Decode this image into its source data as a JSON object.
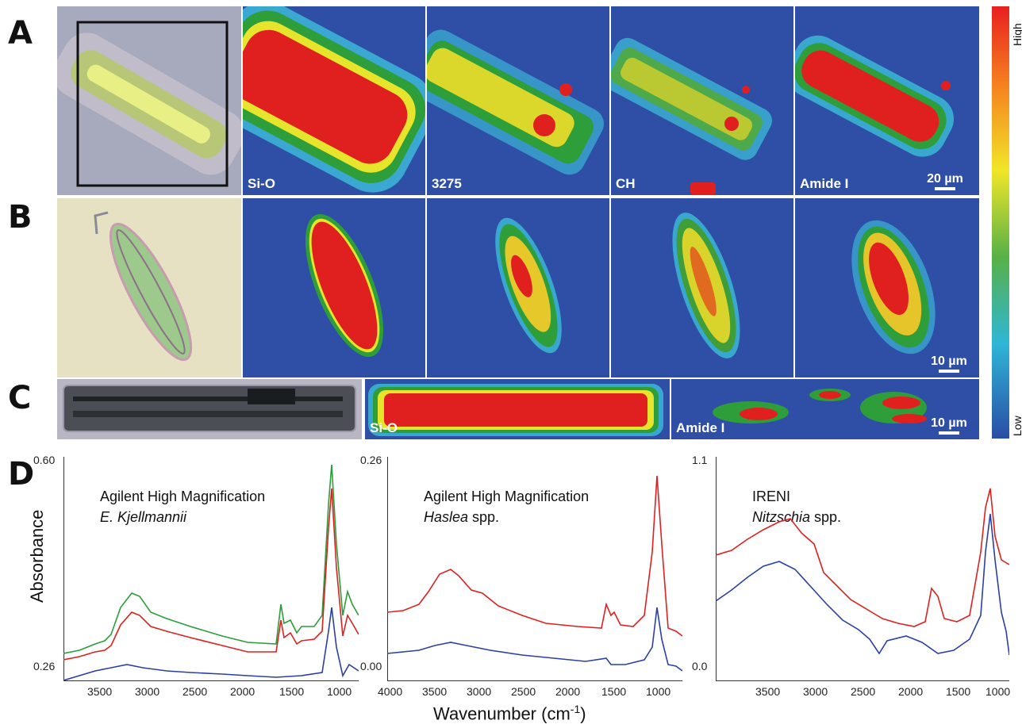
{
  "row_labels": {
    "a": "A",
    "b": "B",
    "c": "C",
    "d": "D"
  },
  "row_a": {
    "labels": [
      "Si-O",
      "3275",
      "CH",
      "Amide I"
    ],
    "scale": "20 µm"
  },
  "row_b": {
    "scale": "10 µm"
  },
  "row_c": {
    "labels": [
      "Si-O",
      "Amide I"
    ],
    "scale": "10 µm"
  },
  "colorbar": {
    "high": "High",
    "low": "Low"
  },
  "spectra": {
    "ylabel": "Absorbance",
    "xlabel": "Wavenumber (cm",
    "xlabel_sup": "-1",
    "xlabel_end": ")",
    "panels": [
      {
        "title": "Agilent High Magnification",
        "subtitle": "E. Kjellmannii",
        "subtitle_suffix": "",
        "ymax": "0.60",
        "ymin": "0.26",
        "xticks": [
          "3500",
          "3000",
          "2500",
          "2000",
          "1500",
          "1000"
        ]
      },
      {
        "title": "Agilent High Magnification",
        "subtitle": "Haslea",
        "subtitle_suffix": " spp.",
        "ymax": "0.26",
        "ymin": "0.00",
        "xticks": [
          "4000",
          "3500",
          "3000",
          "2500",
          "2000",
          "1500",
          "1000"
        ]
      },
      {
        "title": "IRENI",
        "subtitle": "Nitzschia",
        "subtitle_suffix": " spp.",
        "ymax": "1.1",
        "ymin": "0.0",
        "xticks": [
          "3500",
          "3000",
          "2500",
          "2000",
          "1500",
          "1000"
        ]
      }
    ]
  },
  "colors": {
    "map_bg": "#2f4fa6",
    "red": "#e0201f",
    "green": "#2a9e3a",
    "blue": "#2b3fa5"
  }
}
